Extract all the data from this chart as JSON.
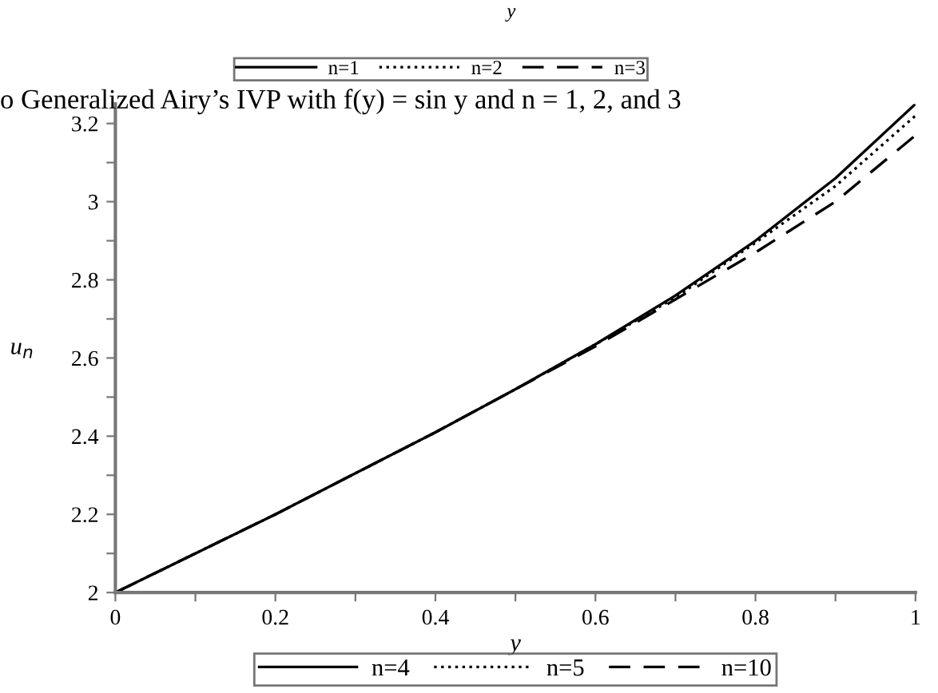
{
  "chart_data": {
    "type": "line",
    "xlabel": "y",
    "ylabel": "u$_{n}$",
    "x": [
      0,
      0.1,
      0.2,
      0.3,
      0.4,
      0.5,
      0.6,
      0.7,
      0.8,
      0.9,
      1.0
    ],
    "series": [
      {
        "name": "n=4",
        "color": "#000000",
        "line_style": "solid",
        "values": [
          2,
          2.1,
          2.2,
          2.305,
          2.41,
          2.52,
          2.635,
          2.76,
          2.9,
          3.06,
          3.25
        ]
      },
      {
        "name": "n=5",
        "color": "#000000",
        "line_style": "dotted",
        "values": [
          2,
          2.1,
          2.2,
          2.305,
          2.41,
          2.52,
          2.635,
          2.755,
          2.895,
          3.04,
          3.22
        ]
      },
      {
        "name": "n=10",
        "color": "#000000",
        "line_style": "dashed",
        "values": [
          2,
          2.1,
          2.2,
          2.305,
          2.41,
          2.52,
          2.63,
          2.75,
          2.87,
          3.0,
          3.17
        ]
      }
    ],
    "xlim": [
      0,
      1
    ],
    "ylim": [
      2,
      3.25
    ],
    "xticks": [
      0,
      {
        "value": 0.1,
        "label": null
      },
      0.2,
      {
        "value": 0.3,
        "label": null
      },
      0.4,
      {
        "value": 0.5,
        "label": null
      },
      0.6,
      {
        "value": 0.7,
        "label": null
      },
      0.8,
      {
        "value": 0.9,
        "label": null
      },
      1
    ],
    "yticks": [
      2,
      {
        "value": 2.1,
        "label": null
      },
      2.2,
      {
        "value": 2.3,
        "label": null
      },
      2.4,
      {
        "value": 2.5,
        "label": null
      },
      2.6,
      {
        "value": 2.7,
        "label": null
      },
      2.8,
      {
        "value": 2.9,
        "label": null
      },
      3,
      {
        "value": 3.1,
        "label": null
      },
      3.2
    ],
    "grid": false,
    "legend": "bottom",
    "marker": "none",
    "annotations": [
      "y",
      "n=1",
      "n=2",
      "n=3",
      "o Generalized Airy’s IVP with f(y) = sin y and n = 1, 2, and 3"
    ]
  }
}
